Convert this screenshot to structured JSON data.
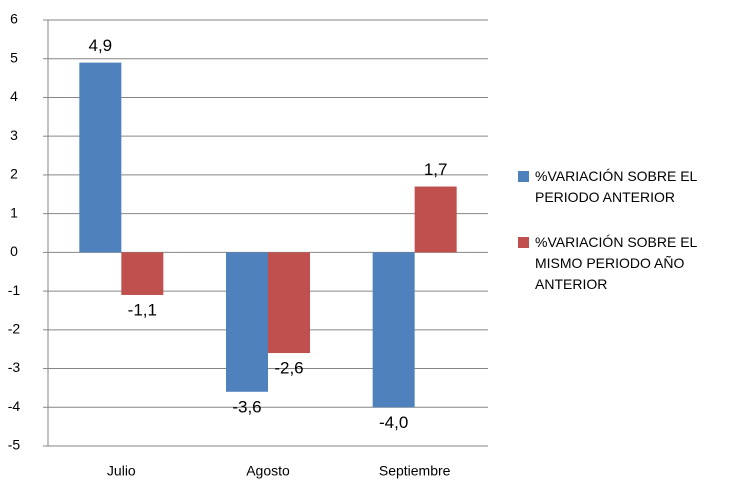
{
  "chart_data": {
    "type": "bar",
    "categories": [
      "Julio",
      "Agosto",
      "Septiembre"
    ],
    "series": [
      {
        "name": "%VARIACIÓN SOBRE EL PERIODO ANTERIOR",
        "color": "#4f81bd",
        "values": [
          4.9,
          -3.6,
          -4.0
        ],
        "value_labels": [
          "4,9",
          "-3,6",
          "-4,0"
        ]
      },
      {
        "name": "%VARIACIÓN SOBRE EL MISMO PERIODO AÑO ANTERIOR",
        "color": "#c0504d",
        "values": [
          -1.1,
          -2.6,
          1.7
        ],
        "value_labels": [
          "-1,1",
          "-2,6",
          "1,7"
        ]
      }
    ],
    "ylim": [
      -5,
      6
    ],
    "yticks": [
      -5,
      -4,
      -3,
      -2,
      -1,
      0,
      1,
      2,
      3,
      4,
      5,
      6
    ],
    "grid": true,
    "legend": "right"
  }
}
